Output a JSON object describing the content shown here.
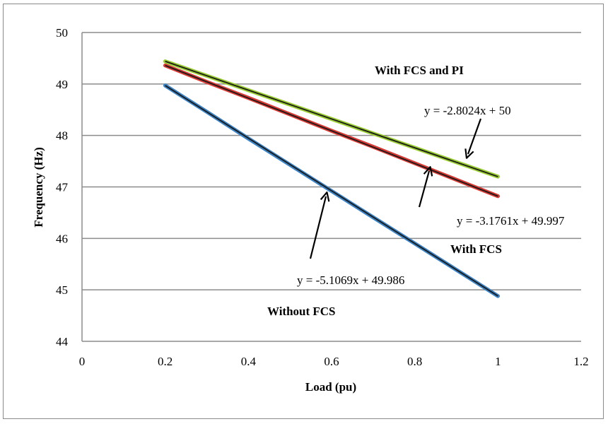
{
  "chart_data": {
    "type": "line",
    "title": "",
    "xlabel": "Load (pu)",
    "ylabel": "Frequency (Hz)",
    "xlim": [
      0,
      1.2
    ],
    "ylim": [
      44,
      50
    ],
    "xticks": [
      "0",
      "0.2",
      "0.4",
      "0.6",
      "0.8",
      "1",
      "1.2"
    ],
    "yticks": [
      "44",
      "45",
      "46",
      "47",
      "48",
      "49",
      "50"
    ],
    "grid": true,
    "series": [
      {
        "name": "With FCS and PI",
        "color": "#9acd32",
        "points": [
          [
            0.2,
            49.44
          ],
          [
            0.3,
            49.16
          ],
          [
            0.4,
            48.88
          ],
          [
            0.5,
            48.6
          ],
          [
            0.6,
            48.32
          ],
          [
            0.7,
            48.04
          ],
          [
            0.8,
            47.76
          ],
          [
            0.9,
            47.48
          ],
          [
            1.0,
            47.2
          ]
        ],
        "trendline_color": "#1a1a1a",
        "equation": "y = -2.8024x + 50"
      },
      {
        "name": "With FCS",
        "color": "#d93a34",
        "points": [
          [
            0.2,
            49.36
          ],
          [
            0.3,
            49.04
          ],
          [
            0.4,
            48.73
          ],
          [
            0.5,
            48.41
          ],
          [
            0.6,
            48.09
          ],
          [
            0.7,
            47.78
          ],
          [
            0.8,
            47.46
          ],
          [
            0.9,
            47.14
          ],
          [
            1.0,
            46.82
          ]
        ],
        "trendline_color": "#1a1a1a",
        "equation": "y = -3.1761x + 49.997"
      },
      {
        "name": "Without FCS",
        "color": "#3b82c4",
        "points": [
          [
            0.2,
            48.97
          ],
          [
            0.3,
            48.46
          ],
          [
            0.4,
            47.94
          ],
          [
            0.5,
            47.43
          ],
          [
            0.6,
            46.92
          ],
          [
            0.7,
            46.41
          ],
          [
            0.8,
            45.9
          ],
          [
            0.9,
            45.39
          ],
          [
            1.0,
            44.88
          ]
        ],
        "trendline_color": "#1a1a1a",
        "equation": "y = -5.1069x + 49.986"
      }
    ],
    "annotations": [
      {
        "text": "With FCS and PI",
        "style": "bold"
      },
      {
        "text": "y = -2.8024x + 50",
        "style": "normal"
      },
      {
        "text": "y = -3.1761x + 49.997",
        "style": "normal"
      },
      {
        "text": "With FCS",
        "style": "bold"
      },
      {
        "text": "y = -5.1069x + 49.986",
        "style": "normal"
      },
      {
        "text": "Without FCS",
        "style": "bold"
      }
    ]
  }
}
